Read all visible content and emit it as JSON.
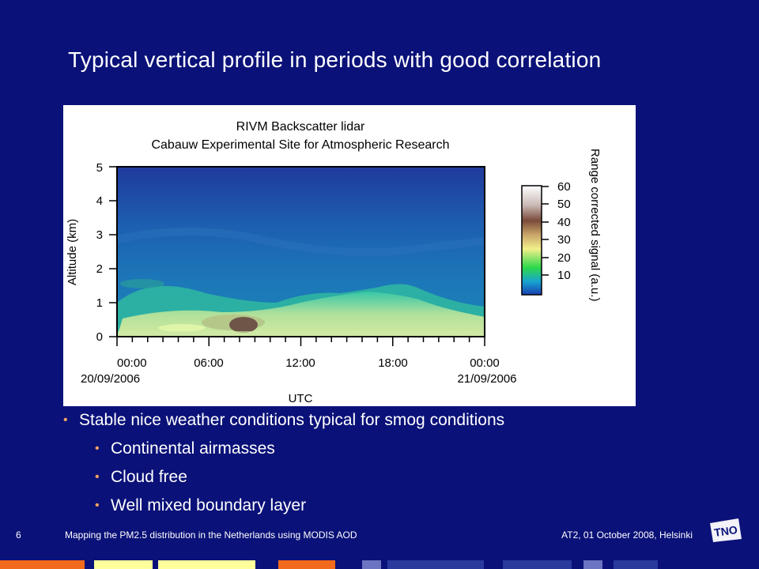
{
  "slide": {
    "title": "Typical vertical profile in periods with good correlation",
    "bullets": [
      {
        "level": 1,
        "text": "Stable nice weather conditions typical for smog conditions"
      },
      {
        "level": 2,
        "text": "Continental airmasses"
      },
      {
        "level": 2,
        "text": "Cloud free"
      },
      {
        "level": 2,
        "text": "Well mixed boundary layer"
      }
    ]
  },
  "figure": {
    "title_line1": "RIVM Backscatter lidar",
    "title_line2": "Cabauw Experimental Site for Atmospheric Research",
    "ylabel": "Altitude (km)",
    "xlabel": "UTC",
    "y_ticks": [
      "0",
      "1",
      "2",
      "3",
      "4",
      "5"
    ],
    "x_ticks": [
      "00:00",
      "06:00",
      "12:00",
      "18:00",
      "00:00"
    ],
    "x_dates": [
      "20/09/2006",
      "21/09/2006"
    ],
    "colorbar_label": "Range corrected signal (a.u.)",
    "colorbar_ticks": [
      "10",
      "20",
      "30",
      "40",
      "50",
      "60"
    ],
    "ylim": [
      0,
      5
    ],
    "x_range_hours": [
      0,
      24
    ]
  },
  "footer": {
    "page_number": "6",
    "presentation_title": "Mapping the PM2.5 distribution in the Netherlands using MODIS AOD",
    "event": "AT2, 01 October 2008, Helsinki"
  },
  "colors": {
    "background": "#0a1178",
    "bullet": "#f4a460",
    "strip_orange": "#f26a1b",
    "strip_yellow": "#ffff9c",
    "strip_blue": "#2a3a9c"
  },
  "logo": {
    "text": "TNO"
  }
}
